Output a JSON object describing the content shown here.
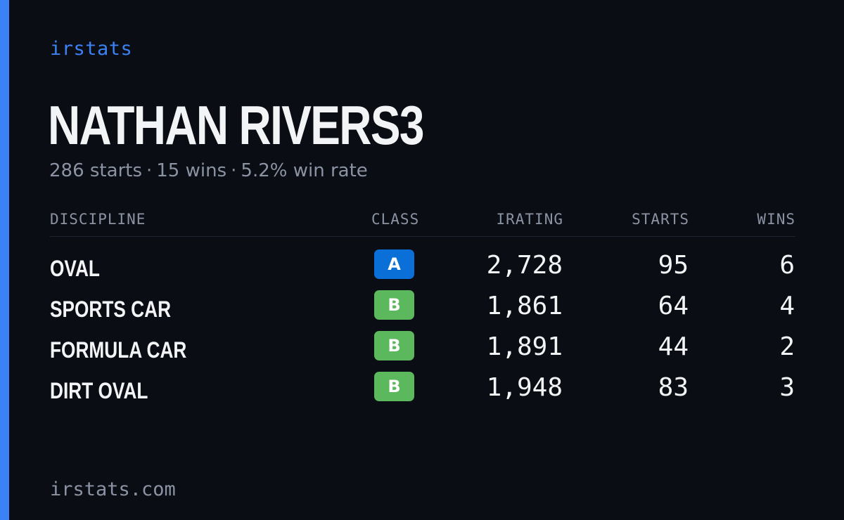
{
  "brand": "irstats",
  "driver": {
    "name": "NATHAN RIVERS3",
    "summary": {
      "starts": "286 starts",
      "wins": "15 wins",
      "win_rate": "5.2% win rate",
      "separator": "·"
    }
  },
  "colors": {
    "accent": "#3b82f6",
    "class_a": "#0a6fd6",
    "class_b": "#5cb85c",
    "background": "#0a0d14",
    "muted_text": "#8b93a3"
  },
  "table": {
    "headers": {
      "discipline": "DISCIPLINE",
      "class": "CLASS",
      "irating": "IRATING",
      "starts": "STARTS",
      "wins": "WINS"
    },
    "rows": [
      {
        "discipline": "OVAL",
        "class": "A",
        "class_color": "#0a6fd6",
        "irating": "2,728",
        "starts": "95",
        "wins": "6"
      },
      {
        "discipline": "SPORTS CAR",
        "class": "B",
        "class_color": "#5cb85c",
        "irating": "1,861",
        "starts": "64",
        "wins": "4"
      },
      {
        "discipline": "FORMULA CAR",
        "class": "B",
        "class_color": "#5cb85c",
        "irating": "1,891",
        "starts": "44",
        "wins": "2"
      },
      {
        "discipline": "DIRT OVAL",
        "class": "B",
        "class_color": "#5cb85c",
        "irating": "1,948",
        "starts": "83",
        "wins": "3"
      }
    ]
  },
  "footer": "irstats.com"
}
